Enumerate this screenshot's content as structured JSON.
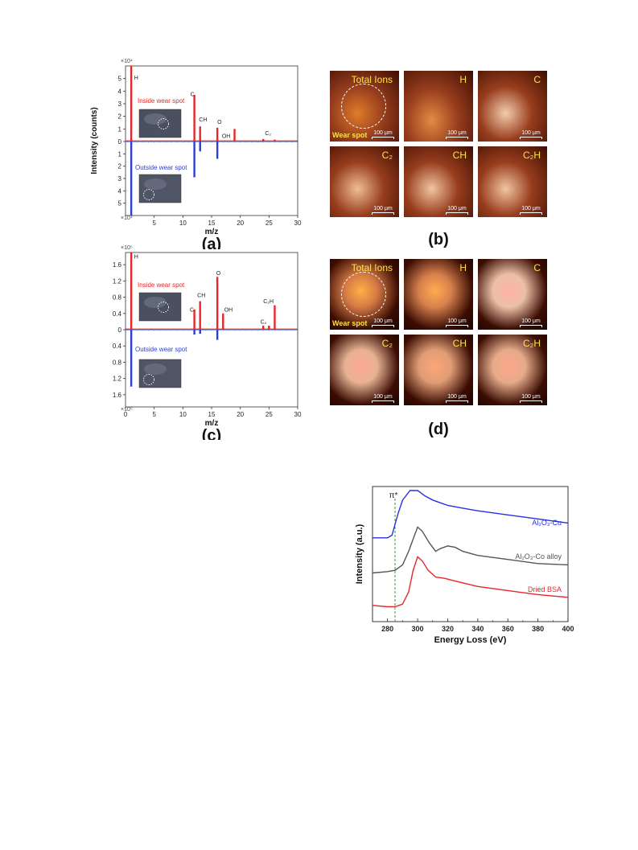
{
  "chart_data": [
    {
      "id": "a",
      "type": "bar",
      "panel_label": "(a)",
      "xlabel": "m/z",
      "ylabel": "Intensity (counts)",
      "multiplier_top": "×10⁴",
      "multiplier_bottom": "×10⁴",
      "xlim": [
        0,
        30
      ],
      "xticks": [
        "5",
        "10",
        "15",
        "20",
        "25",
        "30"
      ],
      "ylim_top": [
        0,
        6
      ],
      "ylim_bottom": [
        0,
        6
      ],
      "yticks_top": [
        "0",
        "1",
        "2",
        "3",
        "4",
        "5"
      ],
      "yticks_bottom": [
        "1",
        "2",
        "3",
        "4",
        "5"
      ],
      "legend_top": "Inside wear spot",
      "legend_bottom": "Outside wear spot",
      "series": [
        {
          "name": "Inside wear spot",
          "color": "#e8262a",
          "x": [
            1,
            12,
            13,
            16,
            19,
            24,
            26
          ],
          "values": [
            6.0,
            3.7,
            1.2,
            1.1,
            1.0,
            0.2,
            0.15
          ]
        },
        {
          "name": "Outside wear spot",
          "color": "#2a3fd6",
          "x": [
            1,
            12,
            13,
            16
          ],
          "values": [
            6.0,
            2.9,
            0.8,
            1.4
          ]
        }
      ],
      "annotations": [
        {
          "text": "H",
          "x": 1.5,
          "y": 4.9
        },
        {
          "text": "C",
          "x": 11.3,
          "y": 3.6
        },
        {
          "text": "CH",
          "x": 12.8,
          "y": 1.6
        },
        {
          "text": "O",
          "x": 16,
          "y": 1.4
        },
        {
          "text": "OH",
          "x": 16.8,
          "y": 0.3
        },
        {
          "text": "C₂",
          "x": 24.3,
          "y": 0.5
        }
      ]
    },
    {
      "id": "c",
      "type": "bar",
      "panel_label": "(c)",
      "xlabel": "m/z",
      "ylabel": "",
      "multiplier_top": "×10⁵",
      "multiplier_bottom": "×10⁵",
      "xlim": [
        0,
        30
      ],
      "xticks": [
        "0",
        "5",
        "10",
        "15",
        "20",
        "25",
        "30"
      ],
      "ylim_top": [
        0,
        1.9
      ],
      "ylim_bottom": [
        0,
        1.9
      ],
      "yticks_top": [
        "0",
        "0.4",
        "0.8",
        "1.2",
        "1.6"
      ],
      "yticks_bottom": [
        "0.4",
        "0.8",
        "1.2",
        "1.6"
      ],
      "legend_top": "Inside wear spot",
      "legend_bottom": "Outside wear spot",
      "series": [
        {
          "name": "Inside wear spot",
          "color": "#e8262a",
          "x": [
            1,
            12,
            13,
            16,
            17,
            24,
            25,
            26
          ],
          "values": [
            1.9,
            0.5,
            0.7,
            1.3,
            0.4,
            0.1,
            0.1,
            0.6
          ]
        },
        {
          "name": "Outside wear spot",
          "color": "#2a3fd6",
          "x": [
            1,
            12,
            13,
            16
          ],
          "values": [
            1.4,
            0.12,
            0.1,
            0.25
          ]
        }
      ],
      "annotations": [
        {
          "text": "H",
          "x": 1.5,
          "y": 1.75
        },
        {
          "text": "C",
          "x": 11.2,
          "y": 0.45
        },
        {
          "text": "CH",
          "x": 12.5,
          "y": 0.8
        },
        {
          "text": "O",
          "x": 15.8,
          "y": 1.35
        },
        {
          "text": "OH",
          "x": 17.2,
          "y": 0.45
        },
        {
          "text": "C₂H",
          "x": 24,
          "y": 0.65
        },
        {
          "text": "C₂",
          "x": 23.5,
          "y": 0.15
        }
      ]
    },
    {
      "id": "eels",
      "type": "line",
      "panel_label": "",
      "xlabel": "Energy Loss (eV)",
      "ylabel": "Intensity (a.u.)",
      "xlim": [
        270,
        400
      ],
      "xticks": [
        "280",
        "300",
        "320",
        "340",
        "360",
        "380",
        "400"
      ],
      "annotation_pi": "π*",
      "pi_x": 285,
      "series": [
        {
          "name": "Al₂O₃-Cu",
          "color": "#2a2ee6",
          "x": [
            270,
            280,
            283,
            285,
            287,
            290,
            295,
            300,
            305,
            310,
            315,
            320,
            330,
            340,
            360,
            380,
            400
          ],
          "values": [
            0.62,
            0.62,
            0.64,
            0.72,
            0.8,
            0.9,
            0.97,
            0.97,
            0.93,
            0.9,
            0.88,
            0.86,
            0.84,
            0.82,
            0.79,
            0.76,
            0.73
          ]
        },
        {
          "name": "Al₂O₃-Co alloy",
          "color": "#555555",
          "x": [
            270,
            280,
            285,
            290,
            294,
            298,
            300,
            303,
            308,
            312,
            315,
            320,
            325,
            330,
            340,
            360,
            380,
            400
          ],
          "values": [
            0.36,
            0.37,
            0.38,
            0.42,
            0.52,
            0.64,
            0.7,
            0.67,
            0.58,
            0.52,
            0.54,
            0.56,
            0.55,
            0.52,
            0.49,
            0.46,
            0.43,
            0.42
          ]
        },
        {
          "name": "Dried BSA",
          "color": "#e8262a",
          "x": [
            270,
            280,
            285,
            290,
            294,
            297,
            300,
            303,
            307,
            312,
            318,
            325,
            340,
            360,
            380,
            400
          ],
          "values": [
            0.12,
            0.11,
            0.11,
            0.13,
            0.22,
            0.38,
            0.48,
            0.45,
            0.38,
            0.33,
            0.32,
            0.3,
            0.26,
            0.23,
            0.2,
            0.18
          ]
        }
      ]
    }
  ],
  "imaging_b": {
    "panel_label": "(b)",
    "tiles": [
      {
        "label": "Total Ions",
        "scale": "100 μm"
      },
      {
        "label": "H",
        "scale": "100 μm"
      },
      {
        "label": "C",
        "scale": "100 μm"
      },
      {
        "label": "C₂",
        "scale": "100 μm"
      },
      {
        "label": "CH",
        "scale": "100 μm"
      },
      {
        "label": "C₂H",
        "scale": "100 μm"
      }
    ],
    "wear_spot": "Wear spot"
  },
  "imaging_d": {
    "panel_label": "(d)",
    "tiles": [
      {
        "label": "Total Ions",
        "scale": "100 μm"
      },
      {
        "label": "H",
        "scale": "100 μm"
      },
      {
        "label": "C",
        "scale": "100 μm"
      },
      {
        "label": "C₂",
        "scale": "100 μm"
      },
      {
        "label": "CH",
        "scale": "100 μm"
      },
      {
        "label": "C₂H",
        "scale": "100 μm"
      }
    ],
    "wear_spot": "Wear spot"
  }
}
